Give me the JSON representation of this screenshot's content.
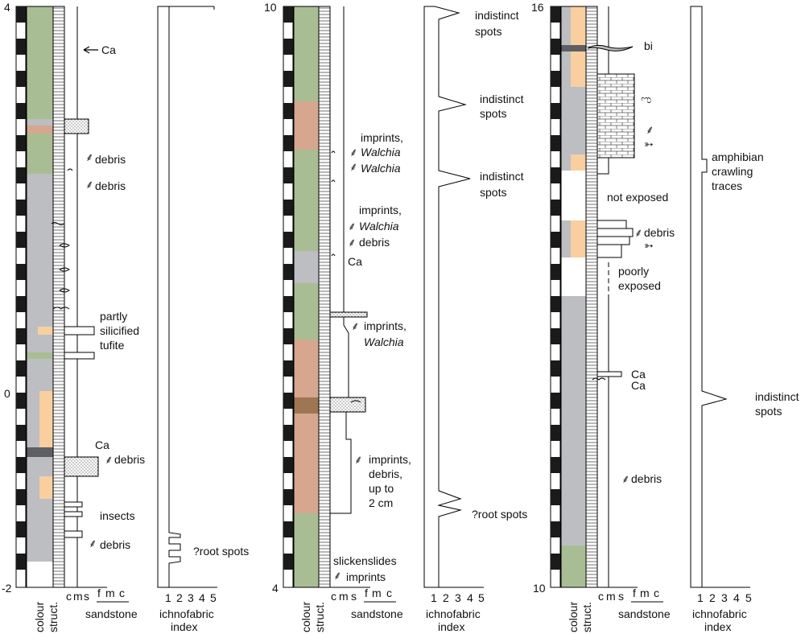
{
  "colors": {
    "green": "#a9bd94",
    "grey": "#bcbec2",
    "orange": "#f9cfa0",
    "brown": "#d6a68e",
    "darkbrown": "#9e7653",
    "darkgrey": "#5e5f62",
    "black": "#1a1a1a"
  },
  "axis_labels": {
    "colour": "colour",
    "struct": "struct.",
    "grain_c": "c",
    "grain_m": "m",
    "grain_s": "s",
    "grain_f": "f",
    "grain_mm": "m",
    "grain_cc": "c",
    "sandstone": "sandstone",
    "ichno_1": "ichnofabric",
    "ichno_2": "index",
    "ichno_ticks": [
      "1",
      "2",
      "3",
      "4",
      "5"
    ]
  },
  "panel1": {
    "depth_top": "4",
    "depth_mid": "0",
    "depth_bottom": "-2",
    "notes": {
      "ca_top": "Ca",
      "debris1": "debris",
      "debris2": "debris",
      "partly": "partly",
      "silicified": "silicified",
      "tufite": "tufite",
      "ca_mid": "Ca",
      "debris3": "debris",
      "insects": "insects",
      "debris4": "debris",
      "root_spots": "?root spots"
    }
  },
  "panel2": {
    "depth_top": "10",
    "depth_bottom": "4",
    "notes": {
      "imprints1": "imprints,",
      "walchia1": "Walchia",
      "walchia2": "Walchia",
      "imprints2": "imprints,",
      "walchia3": "Walchia",
      "debris1": "debris",
      "ca": "Ca",
      "imprints3": "imprints,",
      "walchia4": "Walchia",
      "imprints4": "imprints,",
      "debris2": "debris,",
      "upto": "up to",
      "twocm": "2 cm",
      "slicken": "slickenslides",
      "imprints5": "imprints",
      "spots1a": "indistinct",
      "spots1b": "spots",
      "spots2a": "indistinct",
      "spots2b": "spots",
      "spots3a": "indistinct",
      "spots3b": "spots",
      "root_spots": "?root spots"
    }
  },
  "panel3": {
    "depth_top": "16",
    "depth_bottom": "10",
    "notes": {
      "bi": "bi",
      "not_exposed": "not exposed",
      "debris1": "debris",
      "poorly": "poorly",
      "exposed": "exposed",
      "ca1": "Ca",
      "ca2": "Ca",
      "debris2": "debris",
      "amph1": "amphibian",
      "amph2": "crawling",
      "amph3": "traces",
      "spots_a": "indistinct",
      "spots_b": "spots"
    }
  }
}
